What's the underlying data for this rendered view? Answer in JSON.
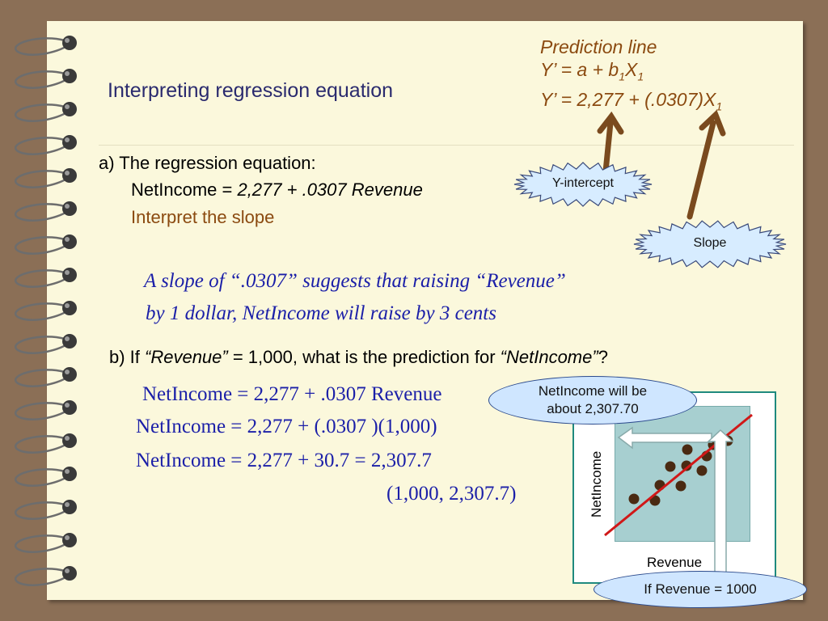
{
  "title": "Interpreting regression equation",
  "prediction": {
    "line1": "Prediction line",
    "line2_prefix": "Y’ = a + b",
    "line2_sub": "1",
    "line2_x": "X",
    "line2_sub2": "1",
    "line3_prefix": "Y’ = 2,277 + (.0307)X",
    "line3_sub": "1"
  },
  "labels": {
    "y_intercept": "Y-intercept",
    "slope": "Slope"
  },
  "part_a": {
    "heading": "a) The regression equation:",
    "eq_prefix": "NetIncome = ",
    "eq_italic": "2,277 + .0307 Revenue",
    "interpret": "Interpret the slope"
  },
  "slope_note": {
    "line1": "A slope of “.0307” suggests that raising “Revenue”",
    "line2": "by 1 dollar, NetIncome will raise by 3 cents"
  },
  "part_b": {
    "prefix": "b) If ",
    "revenue_q": "“Revenue”",
    "middle": " = 1,000, what is the prediction for ",
    "netincome_q": "“NetIncome”",
    "suffix": "?"
  },
  "calc": {
    "line1": "NetIncome = 2,277 + .0307 Revenue",
    "line2": "NetIncome = 2,277 + (.0307 )(1,000)",
    "line3": "NetIncome = 2,277 + 30.7 = 2,307.7",
    "point": "(1,000, 2,307.7)"
  },
  "callouts": {
    "netincome_pred": "NetIncome will be about 2,307.70",
    "if_revenue": "If Revenue = 1000"
  },
  "chart": {
    "ylabel": "NetIncome",
    "xlabel": "Revenue"
  },
  "colors": {
    "brown": "#8b4a10",
    "script_blue": "#1b1fa8",
    "regression_line": "#d01818"
  }
}
